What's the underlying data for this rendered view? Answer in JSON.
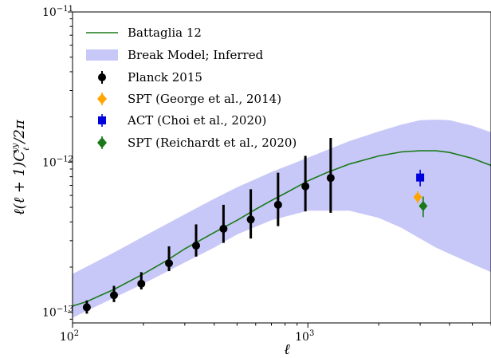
{
  "chart_data": {
    "type": "line",
    "xlabel": "ℓ",
    "ylabel": "ℓ(ℓ + 1)C",
    "ylabel_sub": "ℓ",
    "ylabel_sup": "yy",
    "ylabel_tail": "/2π",
    "xscale": "log",
    "yscale": "log",
    "xlim": [
      100,
      6000
    ],
    "ylim": [
      8.5e-14,
      1e-11
    ],
    "x_ticks": [
      {
        "value": 100,
        "base": "10",
        "exp": "2"
      },
      {
        "value": 1000,
        "base": "10",
        "exp": "3"
      }
    ],
    "y_ticks": [
      {
        "value": 1e-13,
        "base": "10",
        "exp": "−13"
      },
      {
        "value": 1e-12,
        "base": "10",
        "exp": "−12"
      },
      {
        "value": 1e-11,
        "base": "10",
        "exp": "−11"
      }
    ],
    "grid": false,
    "legend_position": "top-left",
    "series": [
      {
        "name": "Battaglia 12",
        "kind": "line",
        "color": "#1a7a1a",
        "x": [
          100,
          115,
          150,
          200,
          250,
          300,
          400,
          500,
          600,
          700,
          800,
          1000,
          1200,
          1500,
          2000,
          2500,
          3000,
          3500,
          4000,
          5000,
          6000
        ],
        "y": [
          1.1e-13,
          1.18e-13,
          1.42e-13,
          1.8e-13,
          2.2e-13,
          2.65e-13,
          3.4e-13,
          4.1e-13,
          4.85e-13,
          5.55e-13,
          6.2e-13,
          7.5e-13,
          8.5e-13,
          9.7e-13,
          1.1e-12,
          1.17e-12,
          1.19e-12,
          1.19e-12,
          1.16e-12,
          1.06e-12,
          9.5e-13
        ]
      },
      {
        "name": "Break Model; Inferred",
        "kind": "band",
        "color": "#c8c8f8",
        "x": [
          100,
          150,
          200,
          300,
          400,
          500,
          700,
          1000,
          1500,
          2000,
          2500,
          3000,
          3500,
          4000,
          5000,
          6000
        ],
        "upper": [
          1.8e-13,
          2.5e-13,
          3.2e-13,
          4.5e-13,
          5.7e-13,
          6.8e-13,
          8.6e-13,
          1.07e-12,
          1.38e-12,
          1.6e-12,
          1.78e-12,
          1.9e-12,
          1.92e-12,
          1.9e-12,
          1.75e-12,
          1.58e-12
        ],
        "lower": [
          9.2e-14,
          1.25e-13,
          1.55e-13,
          2.15e-13,
          2.7e-13,
          3.3e-13,
          4.1e-13,
          4.75e-13,
          4.75e-13,
          4.25e-13,
          3.65e-13,
          3.1e-13,
          2.7e-13,
          2.45e-13,
          2.1e-13,
          1.85e-13
        ]
      },
      {
        "name": "Planck 2015",
        "kind": "errorbar",
        "marker": "circle",
        "color": "#000000",
        "x": [
          115,
          150,
          196,
          257,
          335,
          438,
          572,
          747,
          976,
          1250
        ],
        "y": [
          1.08e-13,
          1.3e-13,
          1.55e-13,
          2.12e-13,
          2.78e-13,
          3.6e-13,
          4.15e-13,
          5.2e-13,
          6.9e-13,
          7.85e-13
        ],
        "yerr_low": [
          9.8e-14,
          1.17e-13,
          1.42e-13,
          1.88e-13,
          2.35e-13,
          2.9e-13,
          3.1e-13,
          3.75e-13,
          4.7e-13,
          4.6e-13
        ],
        "yerr_high": [
          1.2e-13,
          1.5e-13,
          1.85e-13,
          2.75e-13,
          3.85e-13,
          5.2e-13,
          6.6e-13,
          8.5e-13,
          1.1e-12,
          1.45e-12
        ]
      },
      {
        "name": "SPT (George et al., 2014)",
        "kind": "errorbar",
        "marker": "diamond",
        "color": "#ffa500",
        "x": [
          2930
        ],
        "y": [
          5.85e-13
        ],
        "yerr_low": [
          5.3e-13
        ],
        "yerr_high": [
          6.4e-13
        ]
      },
      {
        "name": "ACT (Choi et al., 2020)",
        "kind": "errorbar",
        "marker": "square",
        "color": "#0000dd",
        "x": [
          3000
        ],
        "y": [
          7.9e-13
        ],
        "yerr_low": [
          6.9e-13
        ],
        "yerr_high": [
          8.9e-13
        ]
      },
      {
        "name": "SPT (Reichardt et al., 2020)",
        "kind": "errorbar",
        "marker": "diamond",
        "color": "#1a7a1a",
        "x": [
          3090
        ],
        "y": [
          5.1e-13
        ],
        "yerr_low": [
          4.3e-13
        ],
        "yerr_high": [
          5.9e-13
        ]
      }
    ]
  }
}
